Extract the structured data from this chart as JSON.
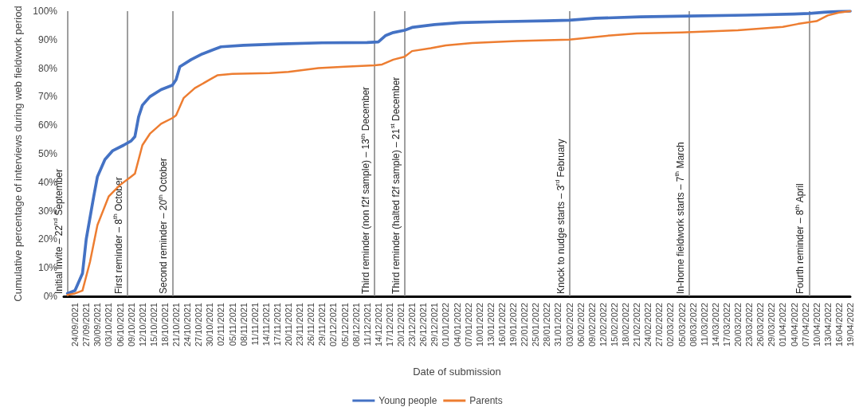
{
  "chart_data": {
    "type": "line",
    "xlabel": "Date of submission",
    "ylabel": "Cumulative percentage of interviews during web fieldwork period",
    "xlim": [
      "2021-09-21",
      "2022-04-19"
    ],
    "xticks": [
      {
        "value": "2021-09-24",
        "label": "24/09/2021"
      },
      {
        "value": "2021-09-27",
        "label": "27/09/2021"
      },
      {
        "value": "2021-09-30",
        "label": "30/09/2021"
      },
      {
        "value": "2021-10-03",
        "label": "03/10/2021"
      },
      {
        "value": "2021-10-06",
        "label": "06/10/2021"
      },
      {
        "value": "2021-10-09",
        "label": "09/10/2021"
      },
      {
        "value": "2021-10-12",
        "label": "12/10/2021"
      },
      {
        "value": "2021-10-15",
        "label": "15/10/2021"
      },
      {
        "value": "2021-10-18",
        "label": "18/10/2021"
      },
      {
        "value": "2021-10-21",
        "label": "21/10/2021"
      },
      {
        "value": "2021-10-24",
        "label": "24/10/2021"
      },
      {
        "value": "2021-10-27",
        "label": "27/10/2021"
      },
      {
        "value": "2021-10-30",
        "label": "30/10/2021"
      },
      {
        "value": "2021-11-02",
        "label": "02/11/2021"
      },
      {
        "value": "2021-11-05",
        "label": "05/11/2021"
      },
      {
        "value": "2021-11-08",
        "label": "08/11/2021"
      },
      {
        "value": "2021-11-11",
        "label": "11/11/2021"
      },
      {
        "value": "2021-11-14",
        "label": "14/11/2021"
      },
      {
        "value": "2021-11-17",
        "label": "17/11/2021"
      },
      {
        "value": "2021-11-20",
        "label": "20/11/2021"
      },
      {
        "value": "2021-11-23",
        "label": "23/11/2021"
      },
      {
        "value": "2021-11-26",
        "label": "26/11/2021"
      },
      {
        "value": "2021-11-29",
        "label": "29/11/2021"
      },
      {
        "value": "2021-12-02",
        "label": "02/12/2021"
      },
      {
        "value": "2021-12-05",
        "label": "05/12/2021"
      },
      {
        "value": "2021-12-08",
        "label": "08/12/2021"
      },
      {
        "value": "2021-12-11",
        "label": "11/12/2021"
      },
      {
        "value": "2021-12-14",
        "label": "14/12/2021"
      },
      {
        "value": "2021-12-17",
        "label": "17/12/2021"
      },
      {
        "value": "2021-12-20",
        "label": "20/12/2021"
      },
      {
        "value": "2021-12-23",
        "label": "23/12/2021"
      },
      {
        "value": "2021-12-26",
        "label": "26/12/2021"
      },
      {
        "value": "2021-12-29",
        "label": "29/12/2021"
      },
      {
        "value": "2022-01-01",
        "label": "01/01/2022"
      },
      {
        "value": "2022-01-04",
        "label": "04/01/2022"
      },
      {
        "value": "2022-01-07",
        "label": "07/01/2022"
      },
      {
        "value": "2022-01-10",
        "label": "10/01/2022"
      },
      {
        "value": "2022-01-13",
        "label": "13/01/2022"
      },
      {
        "value": "2022-01-16",
        "label": "16/01/2022"
      },
      {
        "value": "2022-01-19",
        "label": "19/01/2022"
      },
      {
        "value": "2022-01-22",
        "label": "22/01/2022"
      },
      {
        "value": "2022-01-25",
        "label": "25/01/2022"
      },
      {
        "value": "2022-01-28",
        "label": "28/01/2022"
      },
      {
        "value": "2022-01-31",
        "label": "31/01/2022"
      },
      {
        "value": "2022-02-03",
        "label": "03/02/2022"
      },
      {
        "value": "2022-02-06",
        "label": "06/02/2022"
      },
      {
        "value": "2022-02-09",
        "label": "09/02/2022"
      },
      {
        "value": "2022-02-12",
        "label": "12/02/2022"
      },
      {
        "value": "2022-02-15",
        "label": "15/02/2022"
      },
      {
        "value": "2022-02-18",
        "label": "18/02/2022"
      },
      {
        "value": "2022-02-21",
        "label": "21/02/2022"
      },
      {
        "value": "2022-02-24",
        "label": "24/02/2022"
      },
      {
        "value": "2022-02-27",
        "label": "27/02/2022"
      },
      {
        "value": "2022-03-02",
        "label": "02/03/2022"
      },
      {
        "value": "2022-03-05",
        "label": "05/03/2022"
      },
      {
        "value": "2022-03-08",
        "label": "08/03/2022"
      },
      {
        "value": "2022-03-11",
        "label": "11/03/2022"
      },
      {
        "value": "2022-03-14",
        "label": "14/03/2022"
      },
      {
        "value": "2022-03-17",
        "label": "17/03/2022"
      },
      {
        "value": "2022-03-20",
        "label": "20/03/2022"
      },
      {
        "value": "2022-03-23",
        "label": "23/03/2022"
      },
      {
        "value": "2022-03-26",
        "label": "26/03/2022"
      },
      {
        "value": "2022-03-29",
        "label": "29/03/2022"
      },
      {
        "value": "2022-04-01",
        "label": "01/04/2022"
      },
      {
        "value": "2022-04-04",
        "label": "04/04/2022"
      },
      {
        "value": "2022-04-07",
        "label": "07/04/2022"
      },
      {
        "value": "2022-04-10",
        "label": "10/04/2022"
      },
      {
        "value": "2022-04-13",
        "label": "13/04/2022"
      },
      {
        "value": "2022-04-16",
        "label": "16/04/2022"
      },
      {
        "value": "2022-04-19",
        "label": "19/04/2022"
      }
    ],
    "ylim": [
      0,
      100
    ],
    "yticks": [
      {
        "value": 0,
        "label": "0%"
      },
      {
        "value": 10,
        "label": "10%"
      },
      {
        "value": 20,
        "label": "20%"
      },
      {
        "value": 30,
        "label": "30%"
      },
      {
        "value": 40,
        "label": "40%"
      },
      {
        "value": 50,
        "label": "50%"
      },
      {
        "value": 60,
        "label": "60%"
      },
      {
        "value": 70,
        "label": "70%"
      },
      {
        "value": 80,
        "label": "80%"
      },
      {
        "value": 90,
        "label": "90%"
      },
      {
        "value": 100,
        "label": "100%"
      }
    ],
    "series": [
      {
        "name": "Young people",
        "color": "#4472c4",
        "x": [
          "2021-09-22",
          "2021-09-24",
          "2021-09-26",
          "2021-09-27",
          "2021-09-29",
          "2021-09-30",
          "2021-10-02",
          "2021-10-04",
          "2021-10-07",
          "2021-10-09",
          "2021-10-10",
          "2021-10-11",
          "2021-10-12",
          "2021-10-14",
          "2021-10-17",
          "2021-10-20",
          "2021-10-21",
          "2021-10-22",
          "2021-10-25",
          "2021-10-28",
          "2021-10-31",
          "2021-11-02",
          "2021-11-08",
          "2021-11-18",
          "2021-11-29",
          "2021-12-11",
          "2021-12-14",
          "2021-12-16",
          "2021-12-18",
          "2021-12-21",
          "2021-12-23",
          "2021-12-29",
          "2022-01-05",
          "2022-01-15",
          "2022-01-28",
          "2022-02-03",
          "2022-02-10",
          "2022-02-22",
          "2022-03-07",
          "2022-03-22",
          "2022-04-04",
          "2022-04-08",
          "2022-04-12",
          "2022-04-16",
          "2022-04-19"
        ],
        "values": [
          1,
          2,
          8,
          20,
          35,
          42,
          48,
          51,
          53,
          54.5,
          56,
          63,
          67,
          70,
          72.5,
          74,
          76,
          80.5,
          83,
          85,
          86.5,
          87.5,
          88,
          88.5,
          88.9,
          89,
          89.2,
          91.5,
          92.5,
          93.3,
          94.3,
          95.3,
          96,
          96.3,
          96.6,
          96.8,
          97.5,
          98,
          98.3,
          98.6,
          99,
          99.2,
          99.6,
          99.9,
          100
        ]
      },
      {
        "name": "Parents",
        "color": "#ed7d31",
        "x": [
          "2021-09-22",
          "2021-09-24",
          "2021-09-26",
          "2021-09-28",
          "2021-09-30",
          "2021-10-03",
          "2021-10-06",
          "2021-10-09",
          "2021-10-10",
          "2021-10-12",
          "2021-10-14",
          "2021-10-17",
          "2021-10-20",
          "2021-10-21",
          "2021-10-23",
          "2021-10-26",
          "2021-10-30",
          "2021-11-01",
          "2021-11-05",
          "2021-11-15",
          "2021-11-20",
          "2021-11-28",
          "2021-12-05",
          "2021-12-13",
          "2021-12-15",
          "2021-12-18",
          "2021-12-21",
          "2021-12-23",
          "2021-12-28",
          "2022-01-01",
          "2022-01-08",
          "2022-01-20",
          "2022-02-03",
          "2022-02-14",
          "2022-02-21",
          "2022-03-05",
          "2022-03-20",
          "2022-04-01",
          "2022-04-05",
          "2022-04-10",
          "2022-04-13",
          "2022-04-16",
          "2022-04-19"
        ],
        "values": [
          0.5,
          1,
          2,
          12,
          25,
          35,
          39,
          42,
          43,
          53,
          57,
          60.5,
          62.5,
          63.5,
          69.5,
          73,
          76,
          77.5,
          78,
          78.3,
          78.7,
          80,
          80.5,
          81,
          81.3,
          83,
          84,
          86,
          87,
          88,
          88.8,
          89.5,
          90,
          91.5,
          92.2,
          92.5,
          93.3,
          94.5,
          95.5,
          96.5,
          98.5,
          99.5,
          100
        ]
      }
    ],
    "ref_lines": [
      {
        "axis": "x",
        "value": "2021-09-22",
        "label": "Initial invite – 22$^{nd}$ September",
        "color": "#7f7f7f"
      },
      {
        "axis": "x",
        "value": "2021-10-08",
        "label": "First reminder – 8$^{th}$ October",
        "color": "#7f7f7f"
      },
      {
        "axis": "x",
        "value": "2021-10-20",
        "label": "Second reminder – 20$^{th}$ October",
        "color": "#7f7f7f"
      },
      {
        "axis": "x",
        "value": "2021-12-13",
        "label": "Third reminder (non f2f sample) – 13$^{th}$ December",
        "color": "#7f7f7f"
      },
      {
        "axis": "x",
        "value": "2021-12-21",
        "label": "Third reminder (halted f2f sample) – 21$^{st}$ December",
        "color": "#7f7f7f"
      },
      {
        "axis": "x",
        "value": "2022-02-03",
        "label": "Knock to nudge starts – 3$^{rd}$ February",
        "color": "#7f7f7f"
      },
      {
        "axis": "x",
        "value": "2022-03-07",
        "label": "In-home fieldwork starts – 7$^{th}$ March",
        "color": "#7f7f7f"
      },
      {
        "axis": "x",
        "value": "2022-04-08",
        "label": "Fourth reminder – 8$^{th}$ April",
        "color": "#7f7f7f"
      }
    ],
    "legend": "bottom",
    "marker": "none",
    "line_style": "solid",
    "grid": false
  }
}
